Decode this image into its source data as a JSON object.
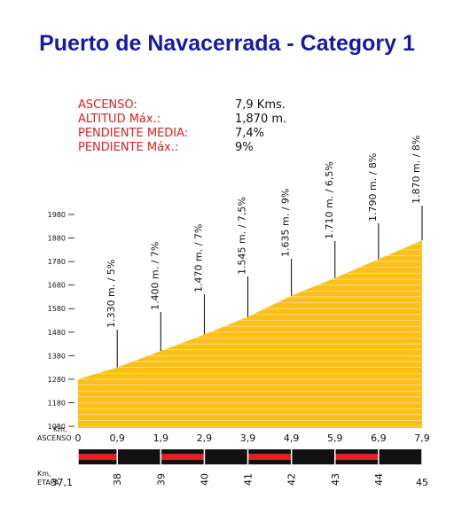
{
  "chart_data": {
    "type": "area",
    "title": "Puerto de Navacerrada - Category 1",
    "info": {
      "labels": [
        "ASCENSO:",
        "ALTITUD Máx.:",
        "PENDIENTE MEDIA:",
        "PENDIENTE Máx.:"
      ],
      "values": [
        "7,9 Kms.",
        "1,870 m.",
        "7,4%",
        "9%"
      ]
    },
    "x": [
      0,
      0.9,
      1.9,
      2.9,
      3.9,
      4.9,
      5.9,
      6.9,
      7.9
    ],
    "values": [
      1280,
      1330,
      1400,
      1470,
      1545,
      1635,
      1710,
      1790,
      1870
    ],
    "value_labels": [
      null,
      "1.330 m. / 5%",
      "1.400 m. / 7%",
      "1.470 m. / 7%",
      "1.545 m. / 7,5%",
      "1.635 m. / 9%",
      "1.710 m. / 6,5%",
      "1.790 m. / 8%",
      "1.870 m. / 8%"
    ],
    "color": "#fdbf1a",
    "xlim": [
      0,
      7.9
    ],
    "xticks": [
      0,
      {
        "value": 0.9,
        "label": "0,9"
      },
      {
        "value": 1.9,
        "label": "1,9"
      },
      {
        "value": 2.9,
        "label": "2,9"
      },
      {
        "value": 3.9,
        "label": "3,9"
      },
      {
        "value": 4.9,
        "label": "4,9"
      },
      {
        "value": 5.9,
        "label": "5,9"
      },
      {
        "value": 6.9,
        "label": "6,9"
      },
      {
        "value": 7.9,
        "label": "7,9"
      }
    ],
    "ylim": [
      1080,
      1980
    ],
    "yticks": [
      1080,
      1180,
      1280,
      1380,
      1480,
      1580,
      1680,
      1780,
      1880,
      1980
    ],
    "x_label": [
      "Km,",
      "ASCENSO"
    ],
    "stage_label": [
      "Km,",
      "ETAPA"
    ],
    "stage_km": [
      {
        "value": 37.1,
        "label": "37,1"
      },
      38,
      39,
      40,
      41,
      42,
      43,
      44,
      45
    ],
    "grid": true
  }
}
